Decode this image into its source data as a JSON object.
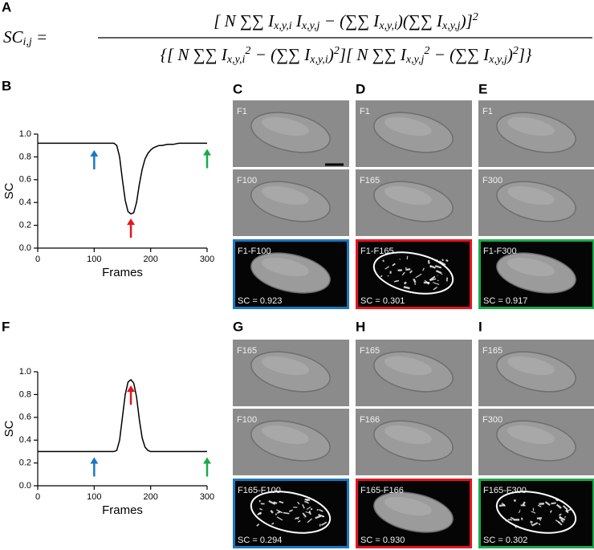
{
  "figure_label": "A",
  "formula": {
    "lhs": [
      {
        "t": "SC"
      },
      {
        "sub": "i,j"
      },
      {
        "t": " ="
      }
    ],
    "numerator": [
      {
        "t": "[ N ∑∑ I"
      },
      {
        "sub": "x,y,i"
      },
      {
        "t": " I"
      },
      {
        "sub": "x,y,j"
      },
      {
        "t": " − (∑∑ I"
      },
      {
        "sub": "x,y,i"
      },
      {
        "t": ")(∑∑ I"
      },
      {
        "sub": "x,y,j"
      },
      {
        "t": ")]"
      },
      {
        "sup": "2"
      }
    ],
    "denominator": [
      {
        "t": "{[ N ∑∑ I"
      },
      {
        "sub": "x,y,i"
      },
      {
        "sup": "2"
      },
      {
        "t": " − (∑∑ I"
      },
      {
        "sub": "x,y,i"
      },
      {
        "t": ")"
      },
      {
        "sup": "2"
      },
      {
        "t": "][ N ∑∑ I"
      },
      {
        "sub": "x,y,j"
      },
      {
        "sup": "2"
      },
      {
        "t": " − (∑∑ I"
      },
      {
        "sub": "x,y,j"
      },
      {
        "t": ")"
      },
      {
        "sup": "2"
      },
      {
        "t": "]}"
      }
    ]
  },
  "chart_data": [
    {
      "type": "line",
      "panel_label": "B",
      "xlabel": "Frames",
      "ylabel": "SC",
      "color": "#000000",
      "x": [
        0,
        10,
        20,
        30,
        40,
        50,
        60,
        70,
        80,
        90,
        100,
        110,
        120,
        130,
        135,
        140,
        145,
        150,
        155,
        160,
        165,
        170,
        175,
        180,
        185,
        190,
        195,
        200,
        205,
        210,
        215,
        220,
        230,
        240,
        250,
        260,
        270,
        280,
        290,
        300
      ],
      "values": [
        0.92,
        0.92,
        0.92,
        0.92,
        0.92,
        0.92,
        0.92,
        0.92,
        0.92,
        0.92,
        0.92,
        0.92,
        0.92,
        0.92,
        0.92,
        0.9,
        0.8,
        0.6,
        0.42,
        0.32,
        0.3,
        0.31,
        0.4,
        0.56,
        0.69,
        0.78,
        0.83,
        0.86,
        0.88,
        0.89,
        0.9,
        0.9,
        0.91,
        0.91,
        0.92,
        0.92,
        0.92,
        0.92,
        0.92,
        0.92
      ],
      "xlim": [
        0,
        300
      ],
      "xticks": [
        0,
        100,
        200,
        300
      ],
      "ylim": [
        0,
        1
      ],
      "yticks": [
        {
          "value": 0,
          "label": "0.0"
        },
        0.2,
        0.4,
        0.6,
        0.8,
        {
          "value": 1,
          "label": "1.0"
        }
      ],
      "arrows": [
        {
          "x": 100,
          "tip": 0.86,
          "color": "#1a78c2"
        },
        {
          "x": 165,
          "tip": 0.26,
          "color": "#e8141b"
        },
        {
          "x": 300,
          "tip": 0.87,
          "color": "#1aaa4a"
        }
      ]
    },
    {
      "type": "line",
      "panel_label": "F",
      "xlabel": "Frames",
      "ylabel": "SC",
      "color": "#000000",
      "x": [
        0,
        10,
        20,
        30,
        40,
        50,
        60,
        70,
        80,
        90,
        100,
        110,
        120,
        130,
        135,
        140,
        145,
        150,
        155,
        160,
        165,
        170,
        175,
        180,
        185,
        190,
        195,
        200,
        205,
        210,
        215,
        220,
        230,
        240,
        250,
        260,
        270,
        280,
        290,
        300
      ],
      "values": [
        0.3,
        0.3,
        0.3,
        0.3,
        0.3,
        0.3,
        0.3,
        0.3,
        0.3,
        0.3,
        0.3,
        0.3,
        0.3,
        0.3,
        0.3,
        0.31,
        0.4,
        0.6,
        0.8,
        0.91,
        0.93,
        0.9,
        0.78,
        0.58,
        0.42,
        0.34,
        0.31,
        0.3,
        0.3,
        0.3,
        0.3,
        0.3,
        0.3,
        0.3,
        0.3,
        0.3,
        0.3,
        0.3,
        0.3,
        0.3
      ],
      "xlim": [
        0,
        300
      ],
      "xticks": [
        0,
        100,
        200,
        300
      ],
      "ylim": [
        0,
        1
      ],
      "yticks": [
        {
          "value": 0,
          "label": "0.0"
        },
        0.2,
        0.4,
        0.6,
        0.8,
        {
          "value": 1,
          "label": "1.0"
        }
      ],
      "arrows": [
        {
          "x": 100,
          "tip": 0.25,
          "color": "#1a78c2"
        },
        {
          "x": 165,
          "tip": 0.88,
          "color": "#e8141b"
        },
        {
          "x": 300,
          "tip": 0.25,
          "color": "#1aaa4a"
        }
      ]
    }
  ],
  "image_columns": [
    {
      "panel_label": "C",
      "border_color": "#1a78c2",
      "frames": [
        "F1",
        "F100"
      ],
      "difference": "F1-F100",
      "sc": "SC = 0.923"
    },
    {
      "panel_label": "D",
      "border_color": "#e8141b",
      "frames": [
        "F1",
        "F165"
      ],
      "difference": "F1-F165",
      "sc": "SC = 0.301"
    },
    {
      "panel_label": "E",
      "border_color": "#1aaa4a",
      "frames": [
        "F1",
        "F300"
      ],
      "difference": "F1-F300",
      "sc": "SC = 0.917"
    },
    {
      "panel_label": "G",
      "border_color": "#1a78c2",
      "frames": [
        "F165",
        "F100"
      ],
      "difference": "F165-F100",
      "sc": "SC = 0.294"
    },
    {
      "panel_label": "H",
      "border_color": "#e8141b",
      "frames": [
        "F165",
        "F166"
      ],
      "difference": "F165-F166",
      "sc": "SC = 0.930"
    },
    {
      "panel_label": "I",
      "border_color": "#1aaa4a",
      "frames": [
        "F165",
        "F300"
      ],
      "difference": "F165-F300",
      "sc": "SC = 0.302"
    }
  ]
}
